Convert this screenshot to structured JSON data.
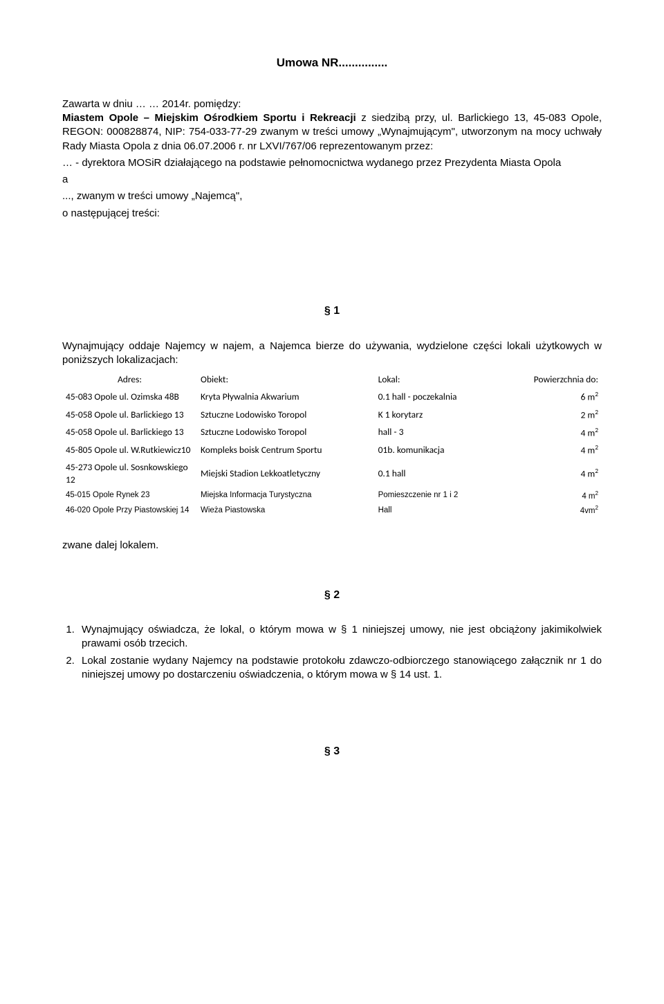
{
  "title": "Umowa NR...............",
  "intro": {
    "l1a": "Zawarta w dniu … … 2014r. pomiędzy:",
    "l1b": "Miastem Opole – Miejskim Ośrodkiem Sportu i Rekreacji",
    "l1c": " z siedzibą przy, ul. Barlickiego 13, 45-083 Opole, REGON: 000828874, NIP: 754-033-77-29 zwanym w treści umowy „Wynajmującym\", utworzonym na mocy uchwały Rady Miasta Opola z dnia 06.07.2006 r. nr LXVI/767/06 reprezentowanym przez:",
    "l2": "… - dyrektora MOSiR działającego na podstawie pełnomocnictwa wydanego przez Prezydenta Miasta Opola",
    "l3": "a",
    "l4": "..., zwanym w treści umowy „Najemcą\",",
    "l5": "o następującej treści:"
  },
  "s1": {
    "num": "§ 1",
    "text": "Wynajmujący oddaje Najemcy w najem, a Najemca bierze do używania, wydzielone części lokali użytkowych w poniższych lokalizacjach:",
    "headers": {
      "addr": "Adres:",
      "obj": "Obiekt:",
      "lok": "Lokal:",
      "area": "Powierzchnia do:"
    },
    "rows": [
      {
        "addr": "45-083 Opole  ul. Ozimska 48B",
        "obj": "Kryta Pływalnia Akwarium",
        "lok": "0.1 hall - poczekalnia",
        "area": "6 m",
        "sup": "2"
      },
      {
        "addr": "45-058 Opole  ul. Barlickiego 13",
        "obj": "Sztuczne Lodowisko Toropol",
        "lok": "K 1 korytarz",
        "area": "2 m",
        "sup": "2"
      },
      {
        "addr": "45-058 Opole  ul. Barlickiego 13",
        "obj": "Sztuczne Lodowisko Toropol",
        "lok": "hall - 3",
        "area": "4 m",
        "sup": "2"
      },
      {
        "addr": "45-805 Opole  ul. W.Rutkiewicz10",
        "obj": "Kompleks boisk Centrum Sportu",
        "lok": "01b. komunikacja",
        "area": "4 m",
        "sup": "2"
      },
      {
        "addr": "45-273 Opole  ul. Sosnkowskiego 12",
        "obj": "Miejski Stadion Lekkoatletyczny",
        "lok": "0.1 hall",
        "area": "4 m",
        "sup": "2"
      }
    ],
    "smallRows": [
      {
        "addr": "45-015    Opole    Rynek 23",
        "obj": "Miejska Informacja Turystyczna",
        "lok": "Pomieszczenie nr 1 i 2",
        "area": "4 m",
        "sup": "2"
      },
      {
        "addr": "46-020    Opole    Przy Piastowskiej 14",
        "obj": "Wieża Piastowska",
        "lok": "Hall",
        "area": "4vm",
        "sup": "2"
      }
    ],
    "after": "zwane dalej lokalem."
  },
  "s2": {
    "num": "§ 2",
    "items": [
      "Wynajmujący oświadcza, że lokal, o którym mowa w § 1 niniejszej umowy, nie jest obciążony jakimikolwiek prawami osób trzecich.",
      "Lokal zostanie wydany Najemcy na podstawie protokołu zdawczo-odbiorczego stanowiącego załącznik nr 1 do niniejszej umowy po dostarczeniu oświadczenia, o którym mowa w § 14 ust. 1."
    ]
  },
  "s3": {
    "num": "§ 3"
  }
}
